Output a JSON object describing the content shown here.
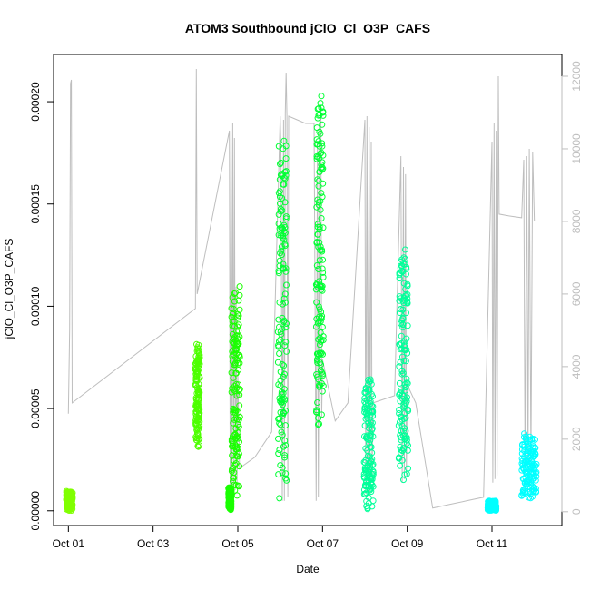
{
  "chart_data": {
    "type": "scatter",
    "title": "ATOM3 Southbound jClO_Cl_O3P_CAFS",
    "xlabel": "Date",
    "ylabel": "jClO_Cl_O3P_CAFS",
    "x_unit": "days (Oct date)",
    "xlim": [
      0.65,
      12.65
    ],
    "ylim": [
      -7.2e-06,
      0.0002231
    ],
    "y2lim": [
      -380,
      12600
    ],
    "x_ticks": [
      {
        "value": 1,
        "label": "Oct 01"
      },
      {
        "value": 3,
        "label": "Oct 03"
      },
      {
        "value": 5,
        "label": "Oct 05"
      },
      {
        "value": 7,
        "label": "Oct 07"
      },
      {
        "value": 9,
        "label": "Oct 09"
      },
      {
        "value": 11,
        "label": "Oct 11"
      }
    ],
    "y_ticks": [
      {
        "value": 0.0,
        "label": "0.00000"
      },
      {
        "value": 5e-05,
        "label": "0.00005"
      },
      {
        "value": 0.0001,
        "label": "0.00010"
      },
      {
        "value": 0.00015,
        "label": "0.00015"
      },
      {
        "value": 0.0002,
        "label": "0.00020"
      }
    ],
    "y2_ticks": [
      {
        "value": 0,
        "label": "0"
      },
      {
        "value": 2000,
        "label": "2000"
      },
      {
        "value": 4000,
        "label": "4000"
      },
      {
        "value": 6000,
        "label": "6000"
      },
      {
        "value": 8000,
        "label": "8000"
      },
      {
        "value": 10000,
        "label": "10000"
      },
      {
        "value": 12000,
        "label": "12000"
      }
    ],
    "grid": false,
    "legend": "none",
    "altitude_color": "#bebebe",
    "altitude_series": [
      [
        1.0,
        2700
      ],
      [
        1.03,
        5000
      ],
      [
        1.05,
        11800
      ],
      [
        1.07,
        11900
      ],
      [
        1.09,
        3000
      ],
      [
        4.0,
        5600
      ],
      [
        4.02,
        12200
      ],
      [
        4.04,
        6000
      ],
      [
        4.8,
        10500
      ],
      [
        4.82,
        500
      ],
      [
        4.84,
        10600
      ],
      [
        4.86,
        500
      ],
      [
        4.88,
        10700
      ],
      [
        4.9,
        600
      ],
      [
        4.92,
        10300
      ],
      [
        4.94,
        600
      ],
      [
        4.96,
        6200
      ],
      [
        4.98,
        700
      ],
      [
        5.0,
        3800
      ],
      [
        5.04,
        1200
      ],
      [
        5.4,
        1500
      ],
      [
        5.8,
        2200
      ],
      [
        6.0,
        10900
      ],
      [
        6.02,
        9800
      ],
      [
        6.05,
        300
      ],
      [
        6.08,
        10800
      ],
      [
        6.1,
        300
      ],
      [
        6.12,
        11000
      ],
      [
        6.14,
        12100
      ],
      [
        6.16,
        10900
      ],
      [
        6.18,
        400
      ],
      [
        6.2,
        10900
      ],
      [
        6.4,
        10800
      ],
      [
        6.6,
        10700
      ],
      [
        6.8,
        10700
      ],
      [
        6.85,
        300
      ],
      [
        6.88,
        10200
      ],
      [
        6.9,
        400
      ],
      [
        6.93,
        10700
      ],
      [
        6.96,
        11200
      ],
      [
        6.98,
        2600
      ],
      [
        7.0,
        4200
      ],
      [
        7.3,
        2500
      ],
      [
        7.6,
        3000
      ],
      [
        8.0,
        10800
      ],
      [
        8.02,
        500
      ],
      [
        8.05,
        10900
      ],
      [
        8.07,
        600
      ],
      [
        8.1,
        10600
      ],
      [
        8.12,
        500
      ],
      [
        8.15,
        10200
      ],
      [
        8.17,
        800
      ],
      [
        8.19,
        3000
      ],
      [
        8.7,
        3200
      ],
      [
        8.85,
        9800
      ],
      [
        8.88,
        800
      ],
      [
        8.91,
        9500
      ],
      [
        8.93,
        900
      ],
      [
        8.96,
        9300
      ],
      [
        8.98,
        1000
      ],
      [
        9.0,
        3500
      ],
      [
        9.2,
        3000
      ],
      [
        9.6,
        100
      ],
      [
        10.0,
        200
      ],
      [
        10.4,
        300
      ],
      [
        10.8,
        400
      ],
      [
        11.0,
        10200
      ],
      [
        11.02,
        800
      ],
      [
        11.05,
        10700
      ],
      [
        11.07,
        900
      ],
      [
        11.1,
        10500
      ],
      [
        11.12,
        1000
      ],
      [
        11.15,
        12000
      ],
      [
        11.17,
        8200
      ],
      [
        11.4,
        8150
      ],
      [
        11.7,
        8100
      ],
      [
        11.75,
        9700
      ],
      [
        11.78,
        1200
      ],
      [
        11.82,
        9800
      ],
      [
        11.85,
        1300
      ],
      [
        11.88,
        10000
      ],
      [
        11.92,
        1400
      ],
      [
        11.96,
        9900
      ],
      [
        12.0,
        8000
      ]
    ],
    "series": [
      {
        "color": "#80ff00",
        "segments": [
          [
            0.95,
            1.1,
            0.0,
            1e-05
          ]
        ]
      },
      {
        "color": "#4dff00",
        "segments": [
          [
            4.0,
            4.1,
            3e-05,
            8.2e-05
          ]
        ]
      },
      {
        "color": "#1aff00",
        "segments": [
          [
            4.78,
            4.85,
            0.0,
            1.2e-05
          ],
          [
            4.85,
            5.05,
            5e-06,
            0.00011
          ]
        ]
      },
      {
        "color": "#00ff33",
        "segments": [
          [
            5.95,
            6.15,
            5e-06,
            0.000185
          ],
          [
            6.85,
            7.02,
            3.5e-05,
            0.000218
          ]
        ]
      },
      {
        "color": "#00ff99",
        "segments": [
          [
            7.98,
            8.2,
            0.0,
            6.5e-05
          ],
          [
            8.8,
            9.02,
            1.5e-05,
            0.00013
          ]
        ]
      },
      {
        "color": "#00ffff",
        "segments": [
          [
            10.9,
            11.1,
            0.0,
            5e-06
          ],
          [
            11.7,
            12.05,
            5e-06,
            3.8e-05
          ]
        ]
      }
    ]
  }
}
